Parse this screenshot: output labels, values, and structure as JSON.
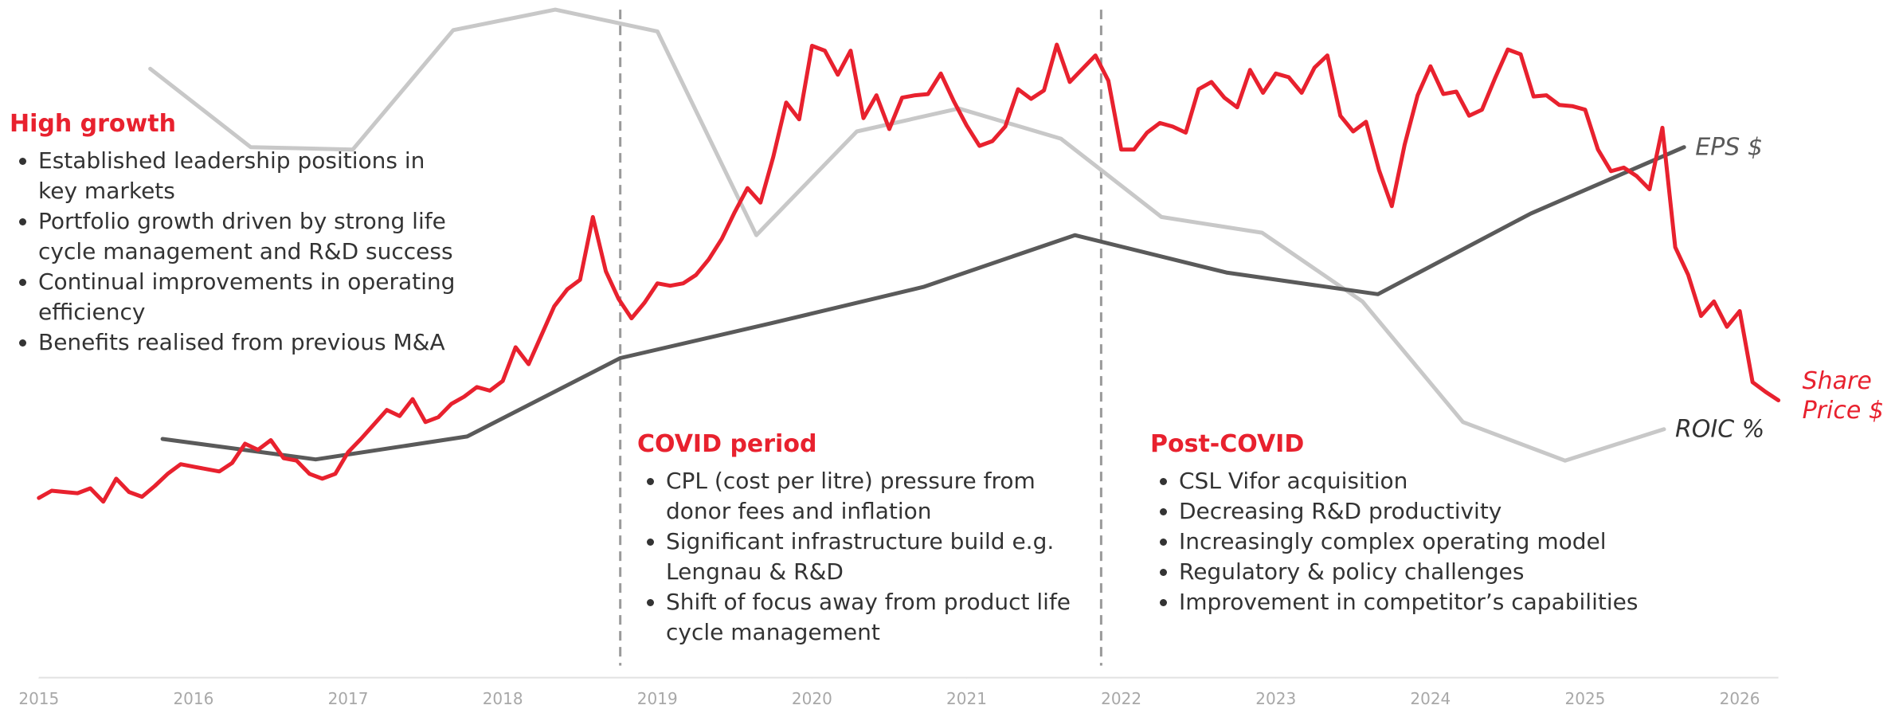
{
  "chart_data": {
    "type": "line",
    "xlim": [
      2015,
      2026.25
    ],
    "xticks": [
      2015,
      2016,
      2017,
      2018,
      2019,
      2020,
      2021,
      2022,
      2023,
      2024,
      2025,
      2026
    ],
    "ylim": [
      0,
      560
    ],
    "dividers": [
      2018.76,
      2021.87
    ],
    "series": [
      {
        "name": "Share Price $",
        "color": "#e8212e",
        "x": [
          2015,
          2015.083,
          2015.167,
          2015.25,
          2015.333,
          2015.417,
          2015.5,
          2015.583,
          2015.667,
          2015.75,
          2015.833,
          2015.917,
          2016,
          2016.083,
          2016.167,
          2016.25,
          2016.333,
          2016.417,
          2016.5,
          2016.583,
          2016.667,
          2016.75,
          2016.833,
          2016.917,
          2017,
          2017.083,
          2017.167,
          2017.25,
          2017.333,
          2017.417,
          2017.5,
          2017.583,
          2017.667,
          2017.75,
          2017.833,
          2017.917,
          2018,
          2018.083,
          2018.167,
          2018.25,
          2018.333,
          2018.417,
          2018.5,
          2018.583,
          2018.667,
          2018.75,
          2018.833,
          2018.917,
          2019,
          2019.083,
          2019.167,
          2019.25,
          2019.333,
          2019.417,
          2019.5,
          2019.583,
          2019.667,
          2019.75,
          2019.833,
          2019.917,
          2020,
          2020.083,
          2020.167,
          2020.25,
          2020.333,
          2020.417,
          2020.5,
          2020.583,
          2020.667,
          2020.75,
          2020.833,
          2020.917,
          2021,
          2021.083,
          2021.167,
          2021.25,
          2021.333,
          2021.417,
          2021.5,
          2021.583,
          2021.667,
          2021.75,
          2021.833,
          2021.917,
          2022,
          2022.083,
          2022.167,
          2022.25,
          2022.333,
          2022.417,
          2022.5,
          2022.583,
          2022.667,
          2022.75,
          2022.833,
          2022.917,
          2023,
          2023.083,
          2023.167,
          2023.25,
          2023.333,
          2023.417,
          2023.5,
          2023.583,
          2023.667,
          2023.75,
          2023.833,
          2023.917,
          2024,
          2024.083,
          2024.167,
          2024.25,
          2024.333,
          2024.417,
          2024.5,
          2024.583,
          2024.667,
          2024.75,
          2024.833,
          2024.917,
          2025,
          2025.083,
          2025.167,
          2025.25,
          2025.333,
          2025.417,
          2025.5,
          2025.583,
          2025.667,
          2025.75,
          2025.833,
          2025.917,
          2026,
          2026.083,
          2026.167,
          2026.25
        ],
        "values": [
          147,
          153,
          152,
          151,
          155,
          144,
          163,
          152,
          148,
          157,
          167,
          175,
          173,
          171,
          169,
          176,
          192,
          187,
          195,
          180,
          178,
          167,
          163,
          167,
          185,
          196,
          208,
          220,
          215,
          229,
          210,
          214,
          225,
          231,
          239,
          236,
          244,
          272,
          258,
          282,
          306,
          320,
          328,
          380,
          335,
          312,
          296,
          309,
          325,
          323,
          325,
          332,
          345,
          362,
          384,
          404,
          392,
          430,
          475,
          461,
          522,
          518,
          498,
          518,
          462,
          481,
          453,
          479,
          481,
          482,
          499,
          476,
          456,
          439,
          443,
          455,
          486,
          478,
          485,
          523,
          492,
          503,
          514,
          493,
          436,
          436,
          450,
          458,
          455,
          450,
          486,
          492,
          479,
          471,
          502,
          483,
          499,
          496,
          483,
          504,
          514,
          464,
          451,
          459,
          419,
          389,
          440,
          481,
          505,
          482,
          484,
          464,
          469,
          495,
          519,
          515,
          480,
          481,
          473,
          472,
          469,
          436,
          418,
          421,
          414,
          403,
          454,
          355,
          332,
          298,
          310,
          289,
          302,
          243,
          235,
          228
        ]
      },
      {
        "name": "EPS $",
        "color": "#5a5a5a",
        "x": [
          2015.8,
          2016.79,
          2017.77,
          2018.76,
          2019.74,
          2020.72,
          2021.7,
          2022.68,
          2023.66,
          2024.65,
          2025.64
        ],
        "values": [
          196,
          179,
          198,
          263,
          292,
          322,
          365,
          334,
          316,
          383,
          438
        ]
      },
      {
        "name": "ROIC %",
        "color": "#c8c8c8",
        "x": [
          2015.72,
          2016.37,
          2017.03,
          2017.68,
          2018.34,
          2019.0,
          2019.64,
          2020.29,
          2020.95,
          2021.61,
          2022.26,
          2022.91,
          2023.56,
          2024.21,
          2024.87,
          2025.51
        ],
        "values": [
          503,
          438,
          436,
          535,
          552,
          534,
          365,
          451,
          470,
          445,
          380,
          367,
          310,
          210,
          178,
          204
        ]
      }
    ],
    "annotations": [
      {
        "title": "High growth",
        "items": [
          "Established leadership positions in key markets",
          "Portfolio growth driven by strong life cycle management and R&D success",
          "Continual improvements in operating efficiency",
          "Benefits realised from previous M&A"
        ]
      },
      {
        "title": "COVID period",
        "items": [
          "CPL (cost per litre) pressure from donor fees and inflation",
          "Significant infrastructure build e.g. Lengnau & R&D",
          "Shift of focus away from product life cycle management"
        ]
      },
      {
        "title": "Post-COVID",
        "items": [
          "CSL Vifor acquisition",
          "Decreasing R&D productivity",
          "Increasingly complex operating model",
          "Regulatory & policy challenges",
          "Improvement in competitor’s capabilities"
        ]
      }
    ]
  }
}
